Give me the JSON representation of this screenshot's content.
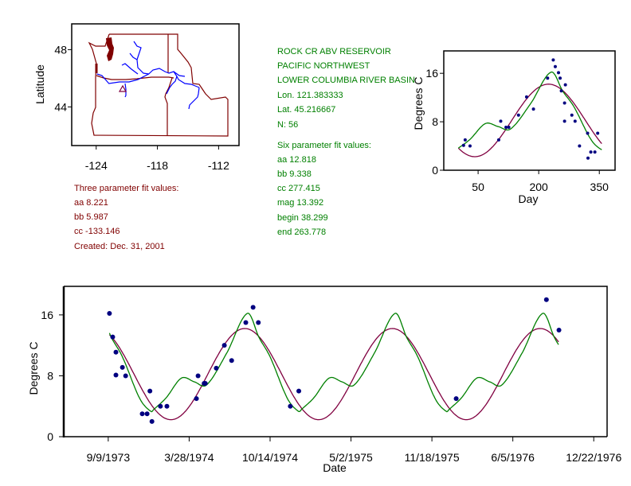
{
  "station": {
    "name": "ROCK CR ABV RESERVOIR",
    "region": "PACIFIC NORTHWEST",
    "basin": "LOWER COLUMBIA RIVER BASIN",
    "lon": "Lon. 121.383333",
    "lat": "Lat. 45.216667",
    "n": "N: 56"
  },
  "six_param": {
    "title": "Six parameter fit values:",
    "aa": "aa 12.818",
    "bb": "bb 9.338",
    "cc": "cc 277.415",
    "mag": "mag 13.392",
    "begin": "begin 38.299",
    "end": "end 263.778"
  },
  "three_param": {
    "title": "Three parameter fit values:",
    "aa": "aa 8.221",
    "bb": "bb 5.987",
    "cc": "cc -133.146",
    "created": "Created:   Dec. 31, 2001"
  },
  "colors": {
    "three_param_fit": "#800040",
    "six_param_fit": "#008000",
    "observations": "#000080",
    "map_borders": "#800000",
    "rivers": "#0000ff",
    "text_green": "#008000",
    "text_brown": "#800000"
  },
  "chart_data": [
    {
      "type": "map",
      "ylabel": "Latitude",
      "xlim": [
        -126.4,
        -110.0
      ],
      "ylim": [
        41.3,
        49.8
      ],
      "xticks": [
        -124,
        -118,
        -112
      ],
      "yticks": [
        48,
        44
      ],
      "station_marker": "triangle"
    },
    {
      "type": "scatter",
      "xlabel": "Day",
      "ylabel": "Degrees C",
      "xlim": [
        -35,
        389
      ],
      "ylim": [
        0,
        19.7
      ],
      "xticks": [
        50,
        200,
        350
      ],
      "yticks": [
        0,
        8,
        16
      ],
      "fit_params": {
        "aa": 8.221,
        "bb": 5.987,
        "cc": -133.146
      },
      "points": [
        [
          14,
          4.1
        ],
        [
          18,
          5
        ],
        [
          30,
          4
        ],
        [
          101,
          5
        ],
        [
          106,
          8.1
        ],
        [
          119,
          7.1
        ],
        [
          126,
          7.1
        ],
        [
          150,
          9.1
        ],
        [
          170,
          12.1
        ],
        [
          187,
          10.1
        ],
        [
          222,
          15.2
        ],
        [
          236,
          18.2
        ],
        [
          241,
          17.1
        ],
        [
          249,
          16.1
        ],
        [
          253,
          15.2
        ],
        [
          256,
          13.1
        ],
        [
          264,
          11.1
        ],
        [
          266,
          14.1
        ],
        [
          264,
          8.1
        ],
        [
          282,
          9.1
        ],
        [
          290,
          8.1
        ],
        [
          301,
          4
        ],
        [
          321,
          6.1
        ],
        [
          322,
          2
        ],
        [
          329,
          3
        ],
        [
          339,
          3
        ],
        [
          346,
          6.1
        ]
      ]
    },
    {
      "type": "scatter",
      "xlabel": "Date",
      "ylabel": "Degrees C",
      "xlim": [
        "1973-05-22",
        "1977-01-24"
      ],
      "ylim": [
        0,
        19.75
      ],
      "xticks": [
        "9/9/1973",
        "3/28/1974",
        "10/14/1974",
        "5/2/1975",
        "11/18/1975",
        "6/5/1976",
        "12/22/1976"
      ],
      "yticks": [
        0,
        8,
        16
      ],
      "fit_range": [
        "1973-09-12",
        "1976-09-27"
      ],
      "points": [
        [
          "1973-09-12",
          16.2
        ],
        [
          "1973-09-20",
          13.1
        ],
        [
          "1973-09-28",
          11.1
        ],
        [
          "1973-09-28",
          8.1
        ],
        [
          "1973-10-14",
          9.1
        ],
        [
          "1973-10-22",
          8
        ],
        [
          "1973-12-02",
          3
        ],
        [
          "1973-12-14",
          3
        ],
        [
          "1973-12-21",
          6
        ],
        [
          "1973-12-26",
          2
        ],
        [
          "1974-01-16",
          4
        ],
        [
          "1974-02-01",
          4
        ],
        [
          "1974-04-15",
          5
        ],
        [
          "1974-04-19",
          8
        ],
        [
          "1974-05-04",
          7
        ],
        [
          "1974-05-07",
          7
        ],
        [
          "1974-06-03",
          9
        ],
        [
          "1974-06-23",
          12
        ],
        [
          "1974-07-11",
          10
        ],
        [
          "1974-08-15",
          15
        ],
        [
          "1974-09-02",
          17
        ],
        [
          "1974-09-15",
          15
        ],
        [
          "1974-12-03",
          4
        ],
        [
          "1974-12-24",
          6
        ],
        [
          "1976-01-17",
          5
        ],
        [
          "1976-08-27",
          18
        ],
        [
          "1976-09-27",
          14
        ]
      ]
    }
  ]
}
